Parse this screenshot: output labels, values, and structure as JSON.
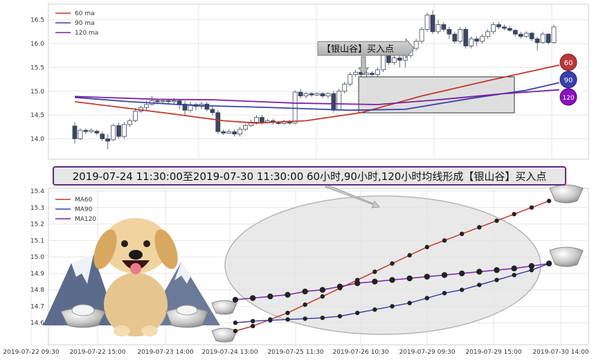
{
  "banner": "2019-07-24 11:30:00至2019-07-30 11:30:00 60小时,90小时,120小时均线形成【银山谷】买入点",
  "signal_label": "【银山谷】买入点",
  "colors": {
    "ma60": "#c0392b",
    "ma90": "#3a3fa5",
    "ma120": "#7a1fa2",
    "candle_down": "#3b4660",
    "candle_up": "#ffffff"
  },
  "chart_data": [
    {
      "type": "candlestick",
      "legend": [
        "60 ma",
        "90 ma",
        "120 ma"
      ],
      "ylim": [
        13.6,
        16.8
      ],
      "yticks": [
        "14.0",
        "14.5",
        "15.0",
        "15.5",
        "16.0",
        "16.5"
      ],
      "candles": [
        [
          14.27,
          14.0,
          14.35,
          13.9
        ],
        [
          14.0,
          14.18,
          14.22,
          13.97
        ],
        [
          14.18,
          14.15,
          14.22,
          14.1
        ],
        [
          14.15,
          14.18,
          14.22,
          14.12
        ],
        [
          14.16,
          14.12,
          14.2,
          14.08
        ],
        [
          14.1,
          14.0,
          14.15,
          13.95
        ],
        [
          14.0,
          13.95,
          14.1,
          13.78
        ],
        [
          13.98,
          14.28,
          14.32,
          13.95
        ],
        [
          14.28,
          14.05,
          14.34,
          14.0
        ],
        [
          14.05,
          14.3,
          14.35,
          14.0
        ],
        [
          14.3,
          14.38,
          14.42,
          14.25
        ],
        [
          14.38,
          14.58,
          14.65,
          14.35
        ],
        [
          14.58,
          14.66,
          14.7,
          14.55
        ],
        [
          14.66,
          14.72,
          14.8,
          14.6
        ],
        [
          14.72,
          14.8,
          14.9,
          14.7
        ],
        [
          14.8,
          14.78,
          14.85,
          14.72
        ],
        [
          14.78,
          14.8,
          14.84,
          14.74
        ],
        [
          14.8,
          14.78,
          14.84,
          14.72
        ],
        [
          14.78,
          14.8,
          14.86,
          14.72
        ],
        [
          14.8,
          14.73,
          14.84,
          14.62
        ],
        [
          14.73,
          14.6,
          14.8,
          14.5
        ],
        [
          14.6,
          14.72,
          14.78,
          14.55
        ],
        [
          14.72,
          14.68,
          14.76,
          14.6
        ],
        [
          14.68,
          14.73,
          14.78,
          14.62
        ],
        [
          14.73,
          14.62,
          14.78,
          14.58
        ],
        [
          14.62,
          14.55,
          14.68,
          14.5
        ],
        [
          14.55,
          14.15,
          14.6,
          14.1
        ],
        [
          14.15,
          14.12,
          14.2,
          14.08
        ],
        [
          14.12,
          14.15,
          14.2,
          14.1
        ],
        [
          14.15,
          14.1,
          14.2,
          14.05
        ],
        [
          14.1,
          14.2,
          14.25,
          14.05
        ],
        [
          14.2,
          14.28,
          14.32,
          14.16
        ],
        [
          14.28,
          14.35,
          14.4,
          14.25
        ],
        [
          14.35,
          14.45,
          14.5,
          14.3
        ],
        [
          14.45,
          14.35,
          14.5,
          14.3
        ],
        [
          14.35,
          14.38,
          14.42,
          14.32
        ],
        [
          14.38,
          14.35,
          14.42,
          14.3
        ],
        [
          14.35,
          14.32,
          14.38,
          14.3
        ],
        [
          14.32,
          14.37,
          14.4,
          14.3
        ],
        [
          14.37,
          14.33,
          14.4,
          14.3
        ],
        [
          14.33,
          14.98,
          15.02,
          14.3
        ],
        [
          14.98,
          14.9,
          15.05,
          14.85
        ],
        [
          14.9,
          14.95,
          14.98,
          14.85
        ],
        [
          14.95,
          14.92,
          14.98,
          14.88
        ],
        [
          14.92,
          14.95,
          14.98,
          14.9
        ],
        [
          14.95,
          14.9,
          14.98,
          14.85
        ],
        [
          14.9,
          14.95,
          14.98,
          14.85
        ],
        [
          14.95,
          14.6,
          15.0,
          14.55
        ],
        [
          14.6,
          15.0,
          15.05,
          14.6
        ],
        [
          15.0,
          15.15,
          15.2,
          14.95
        ],
        [
          15.15,
          15.35,
          15.4,
          15.1
        ],
        [
          15.35,
          15.4,
          15.45,
          15.3
        ],
        [
          15.4,
          15.35,
          15.45,
          15.3
        ],
        [
          15.35,
          15.38,
          15.42,
          15.3
        ],
        [
          15.38,
          15.35,
          15.42,
          15.32
        ],
        [
          15.35,
          15.45,
          15.5,
          15.3
        ],
        [
          15.45,
          15.75,
          15.8,
          15.4
        ],
        [
          15.75,
          15.6,
          15.8,
          15.55
        ],
        [
          15.6,
          15.7,
          15.75,
          15.55
        ],
        [
          15.7,
          15.65,
          15.75,
          15.5
        ],
        [
          15.65,
          15.75,
          15.8,
          15.5
        ],
        [
          15.75,
          15.9,
          15.95,
          15.7
        ],
        [
          15.9,
          16.05,
          16.1,
          15.85
        ],
        [
          16.05,
          16.3,
          16.35,
          16.0
        ],
        [
          16.3,
          16.6,
          16.65,
          16.25
        ],
        [
          16.6,
          16.25,
          16.7,
          16.2
        ],
        [
          16.25,
          16.4,
          16.5,
          16.2
        ],
        [
          16.4,
          16.3,
          16.45,
          16.25
        ],
        [
          16.3,
          16.2,
          16.35,
          16.1
        ],
        [
          16.2,
          16.05,
          16.25,
          16.0
        ],
        [
          16.05,
          16.3,
          16.35,
          16.0
        ],
        [
          16.3,
          15.95,
          16.35,
          15.9
        ],
        [
          15.95,
          16.1,
          16.15,
          15.9
        ],
        [
          16.1,
          16.05,
          16.15,
          15.95
        ],
        [
          16.05,
          16.15,
          16.2,
          16.0
        ],
        [
          16.15,
          16.25,
          16.3,
          16.1
        ],
        [
          16.25,
          16.4,
          16.45,
          16.2
        ],
        [
          16.4,
          16.35,
          16.45,
          16.3
        ],
        [
          16.35,
          16.32,
          16.4,
          16.28
        ],
        [
          16.32,
          16.28,
          16.36,
          16.25
        ],
        [
          16.28,
          16.2,
          16.3,
          16.15
        ],
        [
          16.2,
          16.15,
          16.25,
          16.1
        ],
        [
          16.15,
          16.22,
          16.26,
          16.12
        ],
        [
          16.22,
          16.1,
          16.25,
          16.05
        ],
        [
          16.1,
          16.02,
          16.15,
          15.85
        ],
        [
          16.02,
          16.2,
          16.25,
          16.0
        ],
        [
          16.2,
          16.02,
          16.22,
          15.98
        ],
        [
          16.02,
          16.35,
          16.4,
          16.0
        ]
      ],
      "ma60": [
        [
          0,
          14.78
        ],
        [
          7,
          14.68
        ],
        [
          18,
          14.52
        ],
        [
          27,
          14.38
        ],
        [
          33,
          14.33
        ],
        [
          42,
          14.38
        ],
        [
          52,
          14.55
        ],
        [
          63,
          14.9
        ],
        [
          75,
          15.22
        ],
        [
          88,
          15.55
        ]
      ],
      "ma90": [
        [
          0,
          14.87
        ],
        [
          10,
          14.78
        ],
        [
          22,
          14.7
        ],
        [
          35,
          14.66
        ],
        [
          50,
          14.6
        ],
        [
          60,
          14.62
        ],
        [
          72,
          14.85
        ],
        [
          82,
          15.02
        ],
        [
          88,
          15.18
        ]
      ],
      "ma120": [
        [
          0,
          14.89
        ],
        [
          15,
          14.83
        ],
        [
          25,
          14.82
        ],
        [
          40,
          14.75
        ],
        [
          55,
          14.72
        ],
        [
          66,
          14.82
        ],
        [
          78,
          14.95
        ],
        [
          88,
          15.03
        ]
      ],
      "end_labels": [
        "60",
        "90",
        "120"
      ]
    },
    {
      "type": "line",
      "legend": [
        "MA60",
        "MA90",
        "MA120"
      ],
      "ylim": [
        14.5,
        15.4
      ],
      "yticks": [
        "14.6",
        "14.7",
        "14.8",
        "14.9",
        "15.0",
        "15.1",
        "15.2",
        "15.3",
        "15.4"
      ],
      "xticks": [
        "2019-07-22 09:30",
        "2019-07-22 15:00",
        "2019-07-23 14:00",
        "2019-07-24 13:00",
        "2019-07-25 11:30",
        "2019-07-26 10:30",
        "2019-07-29 09:30",
        "2019-07-29 15:00",
        "2019-07-30 14:00"
      ],
      "series": [
        {
          "name": "MA60",
          "values": [
            14.55,
            14.58,
            14.62,
            14.66,
            14.71,
            14.76,
            14.81,
            14.86,
            14.91,
            14.96,
            15.01,
            15.06,
            15.1,
            15.14,
            15.18,
            15.22,
            15.26,
            15.3,
            15.34
          ]
        },
        {
          "name": "MA90",
          "values": [
            14.6,
            14.61,
            14.615,
            14.62,
            14.625,
            14.63,
            14.64,
            14.66,
            14.68,
            14.7,
            14.72,
            14.75,
            14.78,
            14.8,
            14.83,
            14.86,
            14.89,
            14.92,
            14.96
          ]
        },
        {
          "name": "MA120",
          "values": [
            14.74,
            14.75,
            14.76,
            14.77,
            14.79,
            14.8,
            14.82,
            14.84,
            14.85,
            14.86,
            14.87,
            14.88,
            14.89,
            14.9,
            14.91,
            14.92,
            14.93,
            14.945,
            14.96
          ]
        }
      ]
    }
  ]
}
